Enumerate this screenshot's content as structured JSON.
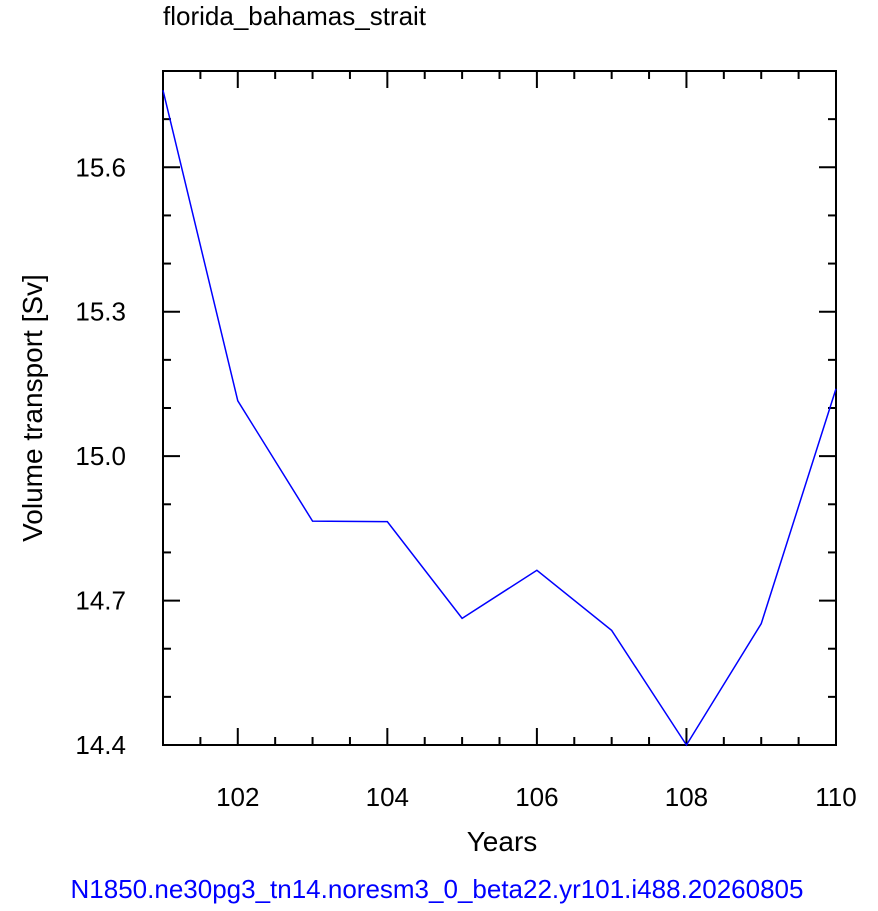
{
  "chart_data": {
    "type": "line",
    "title": "florida_bahamas_strait",
    "xlabel": "Years",
    "ylabel": "Volume transport [Sv]",
    "xlim": [
      101,
      110
    ],
    "ylim": [
      14.4,
      15.8
    ],
    "xticks": [
      102,
      104,
      106,
      108,
      110
    ],
    "xtick_labels": [
      "102",
      "104",
      "106",
      "108",
      "110"
    ],
    "yticks": [
      14.4,
      14.7,
      15.0,
      15.3,
      15.6
    ],
    "ytick_labels": [
      "14.4",
      "14.7",
      "15.0",
      "15.3",
      "15.6"
    ],
    "grid": false,
    "line_color": "#0000ff",
    "x": [
      101,
      102,
      103,
      104,
      105,
      106,
      107,
      108,
      109,
      110
    ],
    "series": [
      {
        "values": [
          15.76,
          15.115,
          14.865,
          14.864,
          14.663,
          14.763,
          14.638,
          14.4,
          14.652,
          15.14
        ]
      }
    ]
  },
  "footer_text": "N1850.ne30pg3_tn14.noresm3_0_beta22.yr101.i488.20260805"
}
